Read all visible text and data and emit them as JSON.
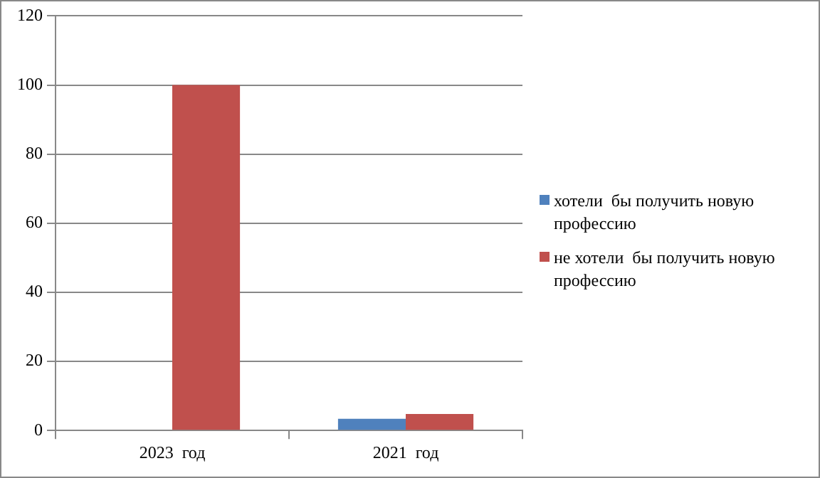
{
  "chart_data": {
    "type": "bar",
    "categories": [
      "2023  год",
      "2021  год"
    ],
    "series": [
      {
        "name": "хотели  бы получить новую профессию",
        "color": "#4f81bd",
        "values": [
          0,
          3.4
        ]
      },
      {
        "name": "не хотели  бы получить новую профессию",
        "color": "#c0504d",
        "values": [
          100,
          4.8
        ]
      }
    ],
    "ylim": [
      0,
      120
    ],
    "yticks": [
      0,
      20,
      40,
      60,
      80,
      100,
      120
    ],
    "grid": "y",
    "legend": "right"
  }
}
